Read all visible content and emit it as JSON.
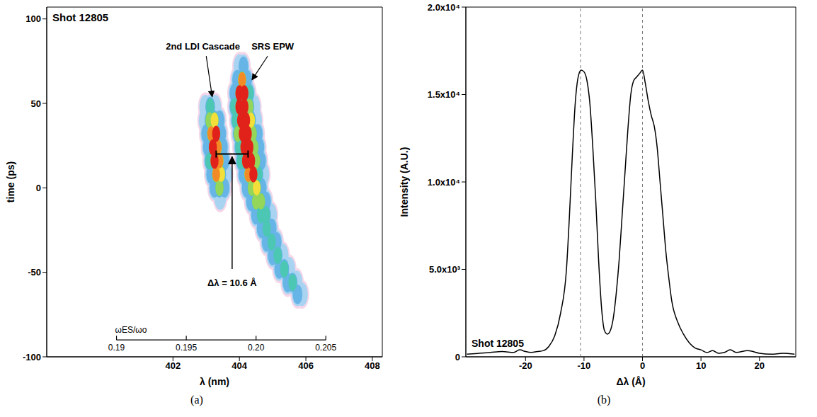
{
  "chart_data": [
    {
      "type": "heatmap",
      "title": "Shot 12805",
      "xlabel": "λ (nm)",
      "ylabel": "time (ps)",
      "xlim": [
        398.2,
        408.3
      ],
      "xticks": [
        402,
        404,
        406,
        408
      ],
      "ylim": [
        -100,
        107
      ],
      "yticks": [
        -100,
        -50,
        0,
        50,
        100
      ],
      "zlim": [
        0,
        1
      ],
      "cells": [
        [
          402.97,
          48,
          0.2
        ],
        [
          403.12,
          48,
          0.45
        ],
        [
          403.27,
          48,
          0.25
        ],
        [
          402.95,
          40,
          0.25
        ],
        [
          403.1,
          40,
          0.6
        ],
        [
          403.25,
          40,
          0.7
        ],
        [
          403.4,
          40,
          0.3
        ],
        [
          403.0,
          32,
          0.35
        ],
        [
          403.15,
          32,
          0.8
        ],
        [
          403.3,
          32,
          0.9
        ],
        [
          403.45,
          32,
          0.35
        ],
        [
          403.05,
          24,
          0.4
        ],
        [
          403.2,
          24,
          0.9
        ],
        [
          403.35,
          24,
          0.85
        ],
        [
          403.5,
          24,
          0.35
        ],
        [
          403.1,
          16,
          0.45
        ],
        [
          403.25,
          16,
          0.92
        ],
        [
          403.4,
          16,
          0.8
        ],
        [
          403.55,
          16,
          0.3
        ],
        [
          403.15,
          8,
          0.4
        ],
        [
          403.3,
          8,
          0.85
        ],
        [
          403.45,
          8,
          0.7
        ],
        [
          403.6,
          8,
          0.25
        ],
        [
          403.25,
          0,
          0.35
        ],
        [
          403.4,
          0,
          0.55
        ],
        [
          403.55,
          0,
          0.3
        ],
        [
          403.42,
          -6,
          0.2
        ],
        [
          404.0,
          72,
          0.2
        ],
        [
          404.12,
          72,
          0.3
        ],
        [
          403.93,
          64,
          0.35
        ],
        [
          404.08,
          64,
          0.8
        ],
        [
          404.23,
          64,
          0.4
        ],
        [
          403.85,
          56,
          0.4
        ],
        [
          404.0,
          56,
          0.95
        ],
        [
          404.15,
          56,
          0.95
        ],
        [
          404.3,
          56,
          0.45
        ],
        [
          403.85,
          48,
          0.45
        ],
        [
          404.0,
          48,
          0.95
        ],
        [
          404.15,
          48,
          0.95
        ],
        [
          404.3,
          48,
          0.6
        ],
        [
          404.45,
          48,
          0.25
        ],
        [
          403.9,
          40,
          0.5
        ],
        [
          404.05,
          40,
          0.95
        ],
        [
          404.2,
          40,
          0.95
        ],
        [
          404.35,
          40,
          0.7
        ],
        [
          404.5,
          40,
          0.25
        ],
        [
          403.95,
          32,
          0.55
        ],
        [
          404.1,
          32,
          0.95
        ],
        [
          404.25,
          32,
          0.95
        ],
        [
          404.4,
          32,
          0.65
        ],
        [
          404.55,
          32,
          0.3
        ],
        [
          404.0,
          24,
          0.5
        ],
        [
          404.15,
          24,
          0.95
        ],
        [
          404.3,
          24,
          0.95
        ],
        [
          404.45,
          24,
          0.6
        ],
        [
          404.6,
          24,
          0.3
        ],
        [
          404.05,
          16,
          0.45
        ],
        [
          404.2,
          16,
          0.9
        ],
        [
          404.35,
          16,
          0.95
        ],
        [
          404.5,
          16,
          0.55
        ],
        [
          404.65,
          16,
          0.3
        ],
        [
          404.12,
          8,
          0.4
        ],
        [
          404.27,
          8,
          0.8
        ],
        [
          404.42,
          8,
          0.9
        ],
        [
          404.57,
          8,
          0.5
        ],
        [
          404.72,
          8,
          0.25
        ],
        [
          404.22,
          0,
          0.35
        ],
        [
          404.37,
          0,
          0.6
        ],
        [
          404.52,
          0,
          0.7
        ],
        [
          404.67,
          0,
          0.4
        ],
        [
          404.35,
          -8,
          0.35
        ],
        [
          404.5,
          -8,
          0.55
        ],
        [
          404.65,
          -8,
          0.6
        ],
        [
          404.8,
          -8,
          0.3
        ],
        [
          404.5,
          -16,
          0.35
        ],
        [
          404.65,
          -16,
          0.5
        ],
        [
          404.8,
          -16,
          0.45
        ],
        [
          404.95,
          -16,
          0.25
        ],
        [
          404.67,
          -24,
          0.3
        ],
        [
          404.82,
          -24,
          0.5
        ],
        [
          404.97,
          -24,
          0.35
        ],
        [
          404.82,
          -32,
          0.3
        ],
        [
          404.97,
          -32,
          0.45
        ],
        [
          405.12,
          -32,
          0.3
        ],
        [
          405.0,
          -40,
          0.3
        ],
        [
          405.15,
          -40,
          0.5
        ],
        [
          405.3,
          -40,
          0.25
        ],
        [
          405.2,
          -48,
          0.3
        ],
        [
          405.35,
          -48,
          0.5
        ],
        [
          405.5,
          -48,
          0.25
        ],
        [
          405.45,
          -56,
          0.3
        ],
        [
          405.6,
          -56,
          0.45
        ],
        [
          405.72,
          -56,
          0.2
        ],
        [
          405.75,
          -63,
          0.3
        ],
        [
          405.88,
          -63,
          0.25
        ]
      ],
      "annotations": [
        "2nd LDI Cascade",
        "SRS EPW",
        "Δλ = 10.6 Å"
      ],
      "secondary_axis": {
        "label": "ωES/ωo",
        "xlim": [
          0.19,
          0.205
        ],
        "xticks": [
          0.19,
          0.195,
          {
            "value": 0.2,
            "label": "0.20"
          },
          0.205
        ]
      },
      "panel_label": "(a)"
    },
    {
      "type": "line",
      "title": "Shot 12805",
      "xlabel": "Δλ (Å)",
      "ylabel": "Intensity (A.U.)",
      "xlim": [
        -30.2,
        26.2
      ],
      "xticks": [
        -20,
        -10,
        0,
        10,
        20
      ],
      "ylim": [
        0,
        20000
      ],
      "yticks": [
        0,
        {
          "value": 5000,
          "label": "5.0x10³"
        },
        {
          "value": 10000,
          "label": "1.0x10⁴"
        },
        {
          "value": 15000,
          "label": "1.5x10⁴"
        },
        {
          "value": 20000,
          "label": "2.0x10⁴"
        }
      ],
      "x": [
        -30,
        -28,
        -26,
        -24,
        -22,
        -21,
        -20,
        -19,
        -18,
        -17,
        -16,
        -15,
        -14,
        -13,
        -12.5,
        -12,
        -11.5,
        -11,
        -10.5,
        -10,
        -9.5,
        -9,
        -8.5,
        -8,
        -7.5,
        -7,
        -6.5,
        -6,
        -5.5,
        -5,
        -4.5,
        -4,
        -3.5,
        -3,
        -2.5,
        -2,
        -1.5,
        -1,
        -0.5,
        0,
        0.5,
        1,
        1.5,
        2,
        2.5,
        3,
        3.5,
        4,
        4.5,
        5,
        6,
        7,
        8,
        9,
        10,
        11,
        12,
        13,
        14,
        15,
        16,
        18,
        20,
        22,
        24,
        26
      ],
      "values": [
        150,
        200,
        250,
        300,
        250,
        400,
        300,
        250,
        300,
        350,
        600,
        1200,
        2500,
        5000,
        8000,
        11500,
        14500,
        16000,
        16400,
        16300,
        15800,
        14500,
        12000,
        9000,
        5500,
        2800,
        1500,
        1300,
        1500,
        2200,
        3600,
        5500,
        8000,
        10500,
        13000,
        15000,
        15800,
        16000,
        16200,
        16400,
        15600,
        14600,
        13800,
        13200,
        12000,
        10000,
        8000,
        6000,
        4500,
        3200,
        2000,
        1300,
        800,
        500,
        400,
        250,
        350,
        200,
        250,
        400,
        250,
        350,
        200,
        150,
        200,
        150
      ],
      "color": "#000000",
      "vlines": [
        -10.6,
        0
      ],
      "panel_label": "(b)"
    }
  ]
}
